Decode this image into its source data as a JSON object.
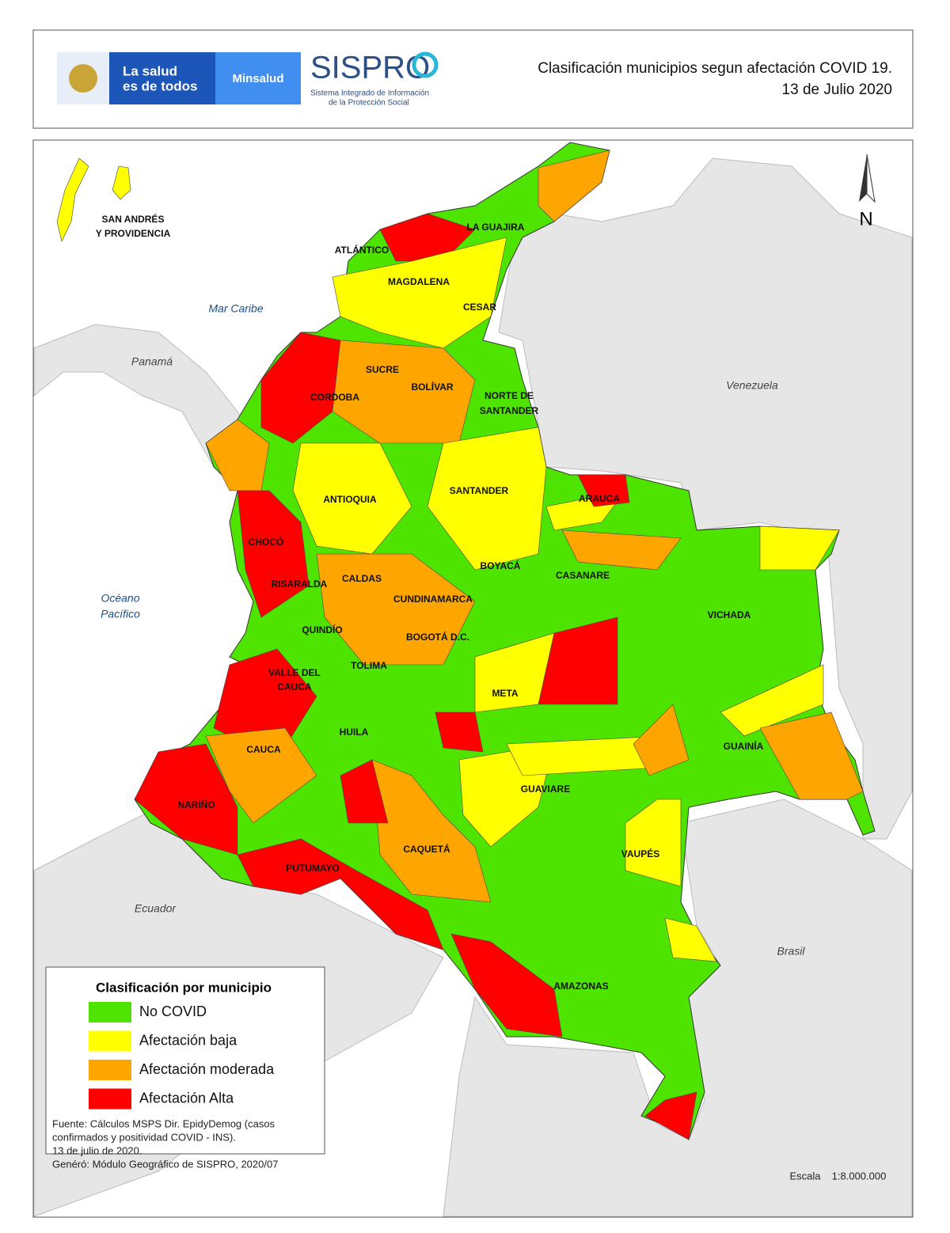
{
  "header": {
    "logo_line1": "La salud",
    "logo_line2": "es de todos",
    "logo_ministry": "Minsalud",
    "sispro": "SISPRO",
    "sispro_sub1": "Sistema Integrado de Información",
    "sispro_sub2": "de la Protección Social",
    "title_line1": "Clasificación municipios segun afectación COVID 19.",
    "title_line2": "13 de Julio 2020"
  },
  "map": {
    "islands": [
      "SAN ANDRÉS",
      "Y PROVIDENCIA"
    ],
    "north": "N",
    "places": [
      "Mar Caribe",
      "Panamá",
      "Venezuela",
      "Océano",
      "Pacífico",
      "Ecuador",
      "Brasil"
    ],
    "departments": [
      "LA GUAJIRA",
      "ATLÁNTICO",
      "MAGDALENA",
      "CESAR",
      "SUCRE",
      "BOLÍVAR",
      "CORDOBA",
      "NORTE DE",
      "SANTANDER",
      "ANTIOQUIA",
      "SANTANDER",
      "ARAUCA",
      "CHOCÓ",
      "BOYACÁ",
      "CASANARE",
      "RISARALDA",
      "CALDAS",
      "CUNDINAMARCA",
      "VICHADA",
      "QUINDÍO",
      "BOGOTÁ D.C.",
      "TOLIMA",
      "VALLE DEL",
      "CAUCA",
      "META",
      "HUILA",
      "GUAINÍA",
      "CAUCA",
      "GUAVIARE",
      "NARIÑO",
      "CAQUETÁ",
      "VAUPÉS",
      "PUTUMAYO",
      "AMAZONAS"
    ]
  },
  "legend": {
    "title": "Clasificación por municipio",
    "items": [
      {
        "name": "No COVID",
        "color": "#4fe400"
      },
      {
        "name": "Afectación baja",
        "color": "#ffff00"
      },
      {
        "name": "Afectación moderada",
        "color": "#ffa500"
      },
      {
        "name": "Afectación Alta",
        "color": "#ff0000"
      }
    ]
  },
  "source": [
    "Fuente: Cálculos MSPS Dir. EpidyDemog (casos",
    "confirmados y positividad COVID - INS).",
    "13 de julio de 2020.",
    "Genéró: Módulo Geográfico de SISPRO, 2020/07"
  ],
  "scale": {
    "label": "Escala",
    "value": "1:8.000.000"
  }
}
